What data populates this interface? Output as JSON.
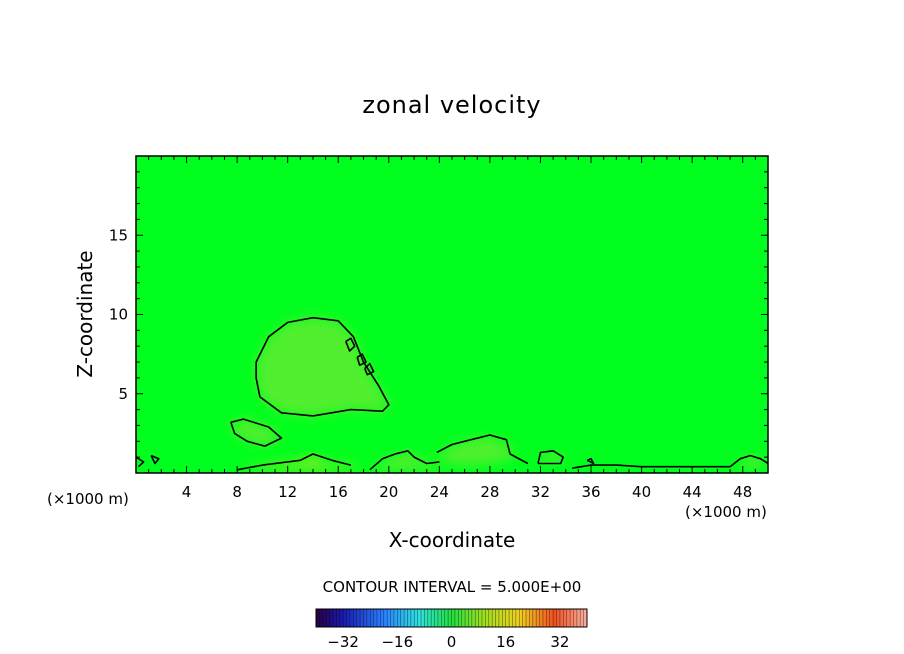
{
  "chart_data": {
    "type": "heatmap",
    "title": "zonal velocity",
    "xlabel": "X-coordinate",
    "ylabel": "Z-coordinate",
    "x_unit_left": "(×1000 m)",
    "x_unit_right": "(×1000 m)",
    "xlim": [
      0,
      50
    ],
    "ylim": [
      0,
      20
    ],
    "x_ticks": [
      "4",
      "8",
      "12",
      "16",
      "20",
      "24",
      "28",
      "32",
      "36",
      "40",
      "44",
      "48"
    ],
    "x_tick_values": [
      4,
      8,
      12,
      16,
      20,
      24,
      28,
      32,
      36,
      40,
      44,
      48
    ],
    "y_ticks": [
      "5",
      "10",
      "15"
    ],
    "y_tick_values": [
      5,
      10,
      15
    ],
    "contour_interval_text": "CONTOUR INTERVAL = 5.000E+00",
    "colorbar": {
      "min": -40,
      "max": 40,
      "tick_labels": [
        "-32",
        "-16",
        "0",
        "16",
        "32"
      ],
      "tick_values": [
        -32,
        -16,
        0,
        16,
        32
      ]
    },
    "background_value": 0,
    "regions": [
      {
        "name": "upper-left anomaly",
        "value": 4,
        "pts": [
          [
            9.5,
            7.0
          ],
          [
            10.5,
            8.6
          ],
          [
            12.0,
            9.5
          ],
          [
            14.0,
            9.8
          ],
          [
            16.0,
            9.6
          ],
          [
            17.2,
            8.6
          ],
          [
            18.0,
            7.0
          ],
          [
            19.2,
            5.5
          ],
          [
            20.0,
            4.3
          ],
          [
            19.5,
            3.9
          ],
          [
            17.0,
            4.0
          ],
          [
            14.0,
            3.6
          ],
          [
            11.5,
            3.8
          ],
          [
            9.8,
            4.8
          ],
          [
            9.5,
            6.0
          ]
        ]
      },
      {
        "name": "small patch left",
        "value": 3,
        "pts": [
          [
            7.5,
            3.2
          ],
          [
            8.5,
            3.4
          ],
          [
            10.5,
            2.9
          ],
          [
            11.5,
            2.2
          ],
          [
            10.2,
            1.7
          ],
          [
            8.8,
            2.0
          ],
          [
            7.8,
            2.5
          ]
        ]
      },
      {
        "name": "lower mid patch",
        "value": 4,
        "pts": [
          [
            24.0,
            1.3
          ],
          [
            26.0,
            2.0
          ],
          [
            28.0,
            2.3
          ],
          [
            29.5,
            1.7
          ],
          [
            30.0,
            0.9
          ],
          [
            28.0,
            0.6
          ],
          [
            26.0,
            0.5
          ],
          [
            24.2,
            0.7
          ]
        ]
      },
      {
        "name": "bottom band",
        "value": 3,
        "pts": [
          [
            18.5,
            0.2
          ],
          [
            20.0,
            0.9
          ],
          [
            21.5,
            1.4
          ],
          [
            22.5,
            0.8
          ],
          [
            24.0,
            0.6
          ],
          [
            24.0,
            0.2
          ]
        ]
      },
      {
        "name": "blob 32",
        "value": 3,
        "pts": [
          [
            31.8,
            0.6
          ],
          [
            32.5,
            1.3
          ],
          [
            33.5,
            1.2
          ],
          [
            33.8,
            0.6
          ]
        ]
      },
      {
        "name": "right edge",
        "value": 3,
        "pts": [
          [
            47.5,
            0.4
          ],
          [
            48.5,
            1.1
          ],
          [
            49.6,
            1.0
          ],
          [
            49.6,
            0.3
          ]
        ]
      },
      {
        "name": "bottom left warm",
        "value": 8,
        "pts": [
          [
            8.0,
            0.2
          ],
          [
            10.0,
            0.5
          ],
          [
            13.0,
            0.8
          ],
          [
            14.0,
            1.2
          ],
          [
            15.0,
            0.6
          ],
          [
            17.0,
            0.5
          ],
          [
            18.0,
            0.2
          ]
        ]
      }
    ],
    "contours": [
      {
        "pts": [
          [
            9.5,
            7.0
          ],
          [
            10.5,
            8.6
          ],
          [
            12.0,
            9.5
          ],
          [
            14.0,
            9.8
          ],
          [
            16.0,
            9.6
          ],
          [
            17.2,
            8.6
          ],
          [
            18.0,
            7.0
          ],
          [
            19.2,
            5.5
          ],
          [
            20.0,
            4.3
          ],
          [
            19.5,
            3.9
          ],
          [
            17.0,
            4.0
          ],
          [
            14.0,
            3.6
          ],
          [
            11.5,
            3.8
          ],
          [
            9.8,
            4.8
          ],
          [
            9.5,
            6.0
          ],
          [
            9.5,
            7.0
          ]
        ]
      },
      {
        "pts": [
          [
            7.5,
            3.2
          ],
          [
            8.5,
            3.4
          ],
          [
            10.5,
            2.9
          ],
          [
            11.5,
            2.2
          ],
          [
            10.2,
            1.7
          ],
          [
            8.8,
            2.0
          ],
          [
            7.8,
            2.5
          ],
          [
            7.5,
            3.2
          ]
        ]
      },
      {
        "pts": [
          [
            16.6,
            8.3
          ],
          [
            17.0,
            8.5
          ],
          [
            17.3,
            8.0
          ],
          [
            16.9,
            7.7
          ],
          [
            16.6,
            8.3
          ]
        ]
      },
      {
        "pts": [
          [
            17.5,
            7.3
          ],
          [
            17.9,
            7.5
          ],
          [
            18.2,
            7.0
          ],
          [
            17.7,
            6.8
          ],
          [
            17.5,
            7.3
          ]
        ]
      },
      {
        "pts": [
          [
            18.1,
            6.6
          ],
          [
            18.5,
            6.9
          ],
          [
            18.8,
            6.4
          ],
          [
            18.3,
            6.2
          ],
          [
            18.1,
            6.6
          ]
        ]
      },
      {
        "pts": [
          [
            23.8,
            1.3
          ],
          [
            25.0,
            1.8
          ],
          [
            26.5,
            2.1
          ],
          [
            28.0,
            2.4
          ],
          [
            29.3,
            2.1
          ],
          [
            29.6,
            1.2
          ],
          [
            31.0,
            0.6
          ]
        ]
      },
      {
        "pts": [
          [
            18.5,
            0.2
          ],
          [
            19.5,
            0.9
          ],
          [
            20.5,
            1.2
          ],
          [
            21.5,
            1.4
          ],
          [
            22.0,
            1.0
          ],
          [
            23.0,
            0.6
          ],
          [
            24.0,
            0.7
          ]
        ]
      },
      {
        "pts": [
          [
            31.8,
            0.6
          ],
          [
            32.0,
            1.3
          ],
          [
            33.0,
            1.4
          ],
          [
            33.8,
            1.0
          ],
          [
            33.6,
            0.6
          ],
          [
            31.8,
            0.6
          ]
        ]
      },
      {
        "pts": [
          [
            0.0,
            1.0
          ],
          [
            0.6,
            0.7
          ],
          [
            0.2,
            0.4
          ]
        ]
      },
      {
        "pts": [
          [
            1.2,
            1.1
          ],
          [
            1.8,
            0.9
          ],
          [
            1.5,
            0.6
          ],
          [
            1.2,
            1.1
          ]
        ]
      },
      {
        "pts": [
          [
            47.0,
            0.4
          ],
          [
            47.8,
            0.9
          ],
          [
            48.6,
            1.1
          ],
          [
            49.4,
            0.9
          ],
          [
            50.0,
            0.6
          ]
        ]
      },
      {
        "pts": [
          [
            34.5,
            0.3
          ],
          [
            36.0,
            0.5
          ],
          [
            38.0,
            0.5
          ],
          [
            40.0,
            0.4
          ],
          [
            43.0,
            0.4
          ],
          [
            45.0,
            0.4
          ],
          [
            47.0,
            0.4
          ]
        ]
      },
      {
        "pts": [
          [
            35.7,
            0.8
          ],
          [
            36.0,
            0.9
          ],
          [
            36.2,
            0.6
          ],
          [
            35.7,
            0.8
          ]
        ]
      },
      {
        "pts": [
          [
            17.0,
            0.5
          ],
          [
            15.5,
            0.8
          ],
          [
            14.0,
            1.2
          ],
          [
            13.0,
            0.8
          ],
          [
            10.0,
            0.5
          ],
          [
            8.0,
            0.2
          ]
        ]
      }
    ]
  }
}
